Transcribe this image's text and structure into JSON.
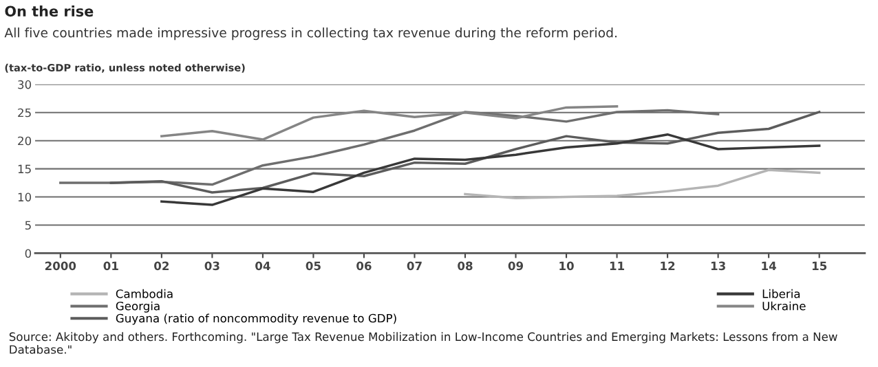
{
  "chart_data": {
    "type": "line",
    "title": "On the rise",
    "subtitle": "All five countries made impressive progress in collecting tax revenue during the reform period.",
    "ylabel": "(tax-to-GDP ratio, unless noted otherwise)",
    "x": [
      2000,
      2001,
      2002,
      2003,
      2004,
      2005,
      2006,
      2007,
      2008,
      2009,
      2010,
      2011,
      2012,
      2013,
      2014,
      2015
    ],
    "xlim": [
      1999.5,
      2015.9
    ],
    "xticks": [
      {
        "value": 2000,
        "label": "2000"
      },
      {
        "value": 2001,
        "label": "01"
      },
      {
        "value": 2002,
        "label": "02"
      },
      {
        "value": 2003,
        "label": "03"
      },
      {
        "value": 2004,
        "label": "04"
      },
      {
        "value": 2005,
        "label": "05"
      },
      {
        "value": 2006,
        "label": "06"
      },
      {
        "value": 2007,
        "label": "07"
      },
      {
        "value": 2008,
        "label": "08"
      },
      {
        "value": 2009,
        "label": "09"
      },
      {
        "value": 2010,
        "label": "10"
      },
      {
        "value": 2011,
        "label": "11"
      },
      {
        "value": 2012,
        "label": "12"
      },
      {
        "value": 2013,
        "label": "13"
      },
      {
        "value": 2014,
        "label": "14"
      },
      {
        "value": 2015,
        "label": "15"
      }
    ],
    "ylim": [
      0,
      30
    ],
    "yticks": [
      0,
      5,
      10,
      15,
      20,
      25,
      30
    ],
    "grid": "y",
    "legend": "bottom",
    "series": [
      {
        "name": "Cambodia",
        "color": "#b4b4b4",
        "values": [
          null,
          null,
          null,
          null,
          null,
          null,
          null,
          null,
          10.5,
          9.8,
          10.0,
          10.2,
          11.0,
          12.0,
          14.8,
          14.3
        ]
      },
      {
        "name": "Georgia",
        "color": "#6e6e6e",
        "values": [
          12.5,
          12.5,
          12.7,
          12.2,
          15.6,
          17.2,
          19.3,
          21.8,
          25.1,
          24.4,
          23.4,
          25.1,
          25.4,
          24.7,
          null,
          null
        ]
      },
      {
        "name": "Guyana (ratio of noncommodity revenue to GDP)",
        "color": "#5c5c5c",
        "values": [
          null,
          12.5,
          12.8,
          10.8,
          11.6,
          14.2,
          13.7,
          16.1,
          15.9,
          18.5,
          20.8,
          19.7,
          19.5,
          21.4,
          22.1,
          25.1
        ]
      },
      {
        "name": "Liberia",
        "color": "#383838",
        "values": [
          null,
          null,
          9.2,
          8.6,
          11.5,
          10.9,
          14.3,
          16.8,
          16.6,
          17.5,
          18.8,
          19.5,
          21.1,
          18.5,
          18.8,
          19.1
        ]
      },
      {
        "name": "Ukraine",
        "color": "#858585",
        "values": [
          null,
          null,
          20.8,
          21.7,
          20.2,
          24.1,
          25.3,
          24.2,
          25.0,
          24.0,
          25.9,
          26.1,
          null,
          null,
          null,
          null
        ]
      }
    ],
    "annotations": [
      "Source: Akitoby and others. Forthcoming. \"Large Tax Revenue Mobilization in Low-Income Countries and Emerging Markets: Lessons from a New Database.\""
    ]
  }
}
